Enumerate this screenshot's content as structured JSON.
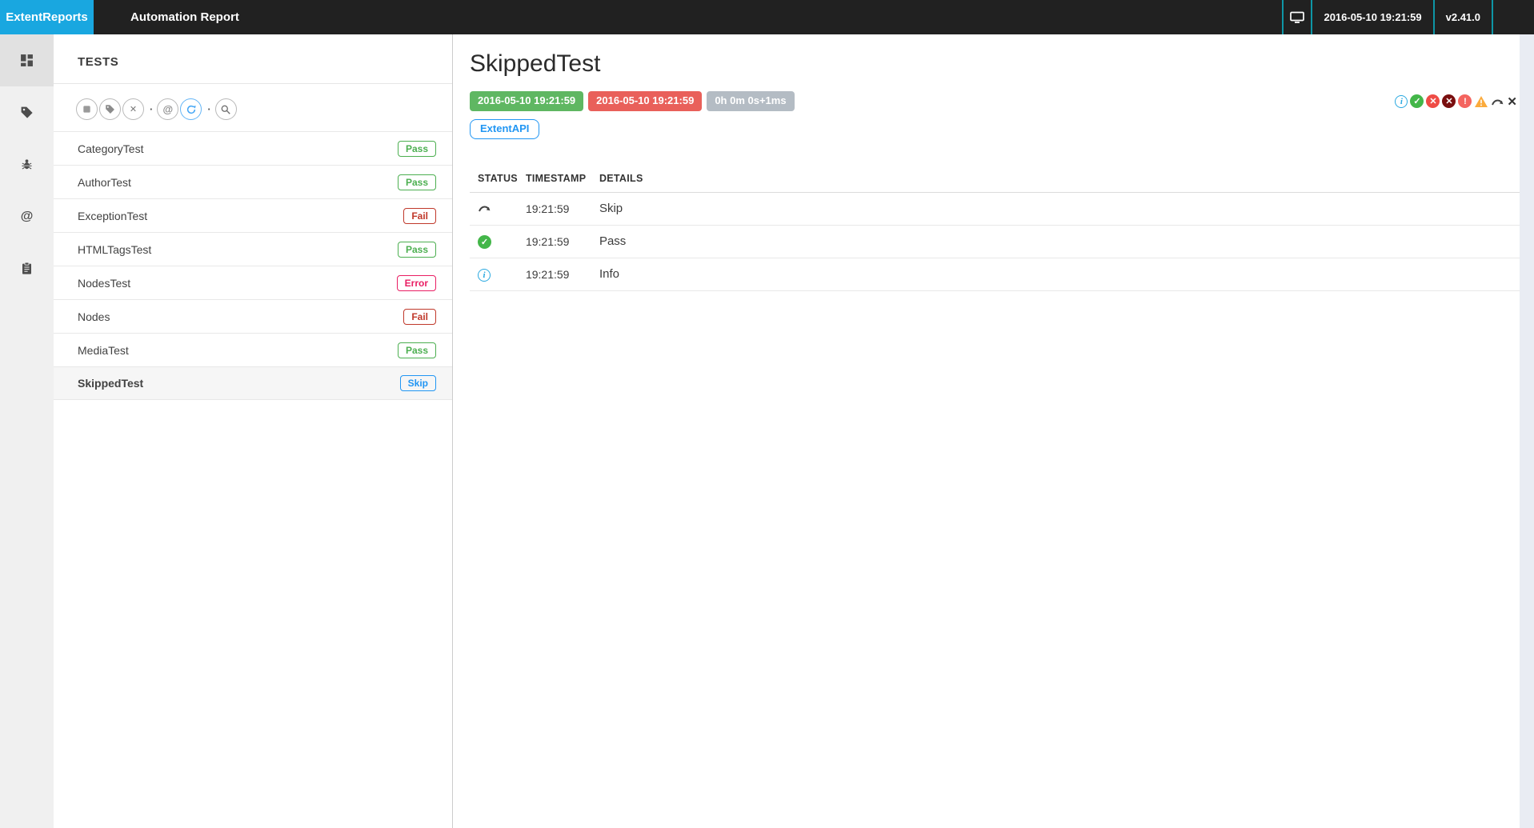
{
  "navbar": {
    "brand": "ExtentReports",
    "report_title": "Automation Report",
    "timestamp": "2016-05-10 19:21:59",
    "version": "v2.41.0"
  },
  "sidebar": {
    "items": [
      {
        "icon": "dashboard-grid-icon",
        "active": true
      },
      {
        "icon": "tag-icon",
        "active": false
      },
      {
        "icon": "bug-icon",
        "active": false
      },
      {
        "icon": "mention-icon",
        "active": false
      },
      {
        "icon": "clipboard-icon",
        "active": false
      }
    ]
  },
  "tests_panel": {
    "title": "TESTS",
    "toolbar": [
      {
        "type": "button",
        "icon": "status-filter-icon"
      },
      {
        "type": "button",
        "icon": "category-filter-icon"
      },
      {
        "type": "button",
        "icon": "clear-filters-icon"
      },
      {
        "type": "dot",
        "glyph": "·"
      },
      {
        "type": "button",
        "icon": "mention-filter-icon"
      },
      {
        "type": "button",
        "icon": "refresh-icon",
        "active": true
      },
      {
        "type": "dot",
        "glyph": "·"
      },
      {
        "type": "button",
        "icon": "search-icon"
      }
    ],
    "tests": [
      {
        "name": "CategoryTest",
        "status": "Pass",
        "selected": false
      },
      {
        "name": "AuthorTest",
        "status": "Pass",
        "selected": false
      },
      {
        "name": "ExceptionTest",
        "status": "Fail",
        "selected": false
      },
      {
        "name": "HTMLTagsTest",
        "status": "Pass",
        "selected": false
      },
      {
        "name": "NodesTest",
        "status": "Error",
        "selected": false
      },
      {
        "name": "Nodes",
        "status": "Fail",
        "selected": false
      },
      {
        "name": "MediaTest",
        "status": "Pass",
        "selected": false
      },
      {
        "name": "SkippedTest",
        "status": "Skip",
        "selected": true
      }
    ]
  },
  "detail": {
    "title": "SkippedTest",
    "start_time": "2016-05-10 19:21:59",
    "end_time": "2016-05-10 19:21:59",
    "duration": "0h 0m 0s+1ms",
    "category": "ExtentAPI",
    "status_toolbar": [
      "info",
      "pass",
      "fail",
      "fatal",
      "error",
      "warning",
      "skip",
      "clear"
    ],
    "log_table": {
      "headers": [
        "STATUS",
        "TIMESTAMP",
        "DETAILS"
      ],
      "rows": [
        {
          "status": "skip",
          "timestamp": "19:21:59",
          "details": "Skip"
        },
        {
          "status": "pass",
          "timestamp": "19:21:59",
          "details": "Pass"
        },
        {
          "status": "info",
          "timestamp": "19:21:59",
          "details": "Info"
        }
      ]
    }
  },
  "colors": {
    "brand_blue": "#19a7e0",
    "navbar_dark": "#212121",
    "teal_divider": "#0e96a6",
    "pass_green": "#4caf50",
    "fail_red": "#c0392b",
    "error_pink": "#e91e63",
    "skip_blue": "#2196f3",
    "badge_green": "#5fb762",
    "badge_red": "#e9605a",
    "badge_gray": "#b4bcc4",
    "warning_orange": "#fbab3c",
    "fatal_maroon": "#7a0f0f",
    "sidebar_bg": "#f0f0f0"
  }
}
